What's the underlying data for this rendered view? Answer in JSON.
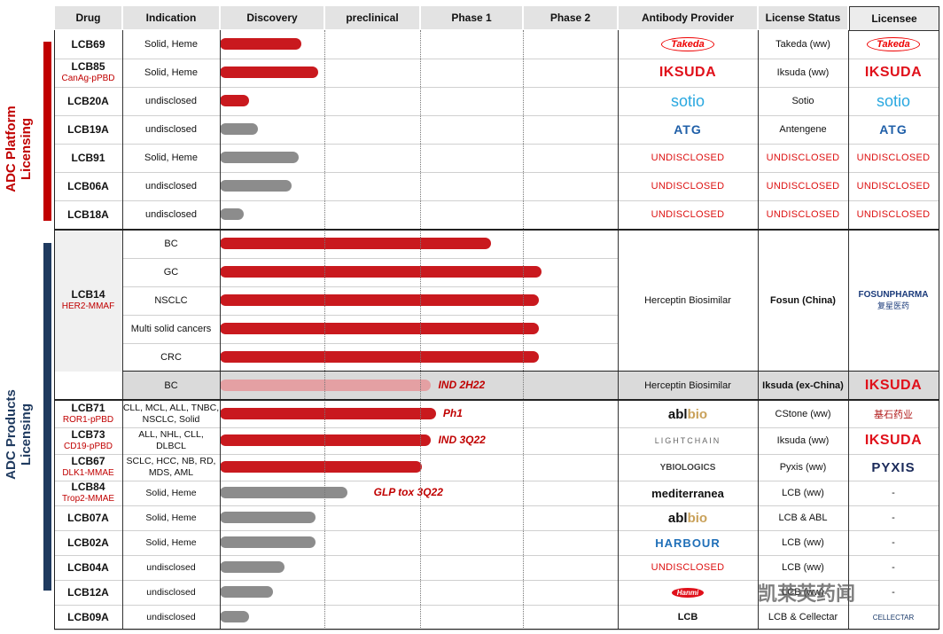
{
  "headers": [
    "Drug",
    "Indication",
    "Discovery",
    "preclinical",
    "Phase 1",
    "Phase 2",
    "Antibody Provider",
    "License Status",
    "Licensee"
  ],
  "sections": {
    "platform": "ADC Platform\nLicensing",
    "products": "ADC Products\nLicensing"
  },
  "colors": {
    "red": "#c9191e",
    "grey": "#8c8c8c",
    "pink": "#e4a0a3",
    "navy": "#1f3a5f",
    "section_red": "#c00000"
  },
  "platform_rows": [
    {
      "drug": "LCB69",
      "sub": "",
      "indication": "Solid, Heme",
      "progress": 0.17,
      "color": "red",
      "provider": "Takeda",
      "provider_style": "takeda",
      "status": "Takeda (ww)",
      "licensee": "Takeda",
      "licensee_style": "takeda"
    },
    {
      "drug": "LCB85",
      "sub": "CanAg-pPBD",
      "indication": "Solid, Heme",
      "progress": 0.205,
      "color": "red",
      "provider": "IKSUDA",
      "provider_style": "iksuda",
      "status": "Iksuda (ww)",
      "licensee": "IKSUDA",
      "licensee_style": "iksuda"
    },
    {
      "drug": "LCB20A",
      "sub": "",
      "indication": "undisclosed",
      "progress": 0.06,
      "color": "red",
      "provider": "Sotio",
      "provider_style": "sotio",
      "status": "Sotio",
      "licensee": "Sotio",
      "licensee_style": "sotio"
    },
    {
      "drug": "LCB19A",
      "sub": "",
      "indication": "undisclosed",
      "progress": 0.08,
      "color": "grey",
      "provider": "ATG",
      "provider_style": "atg",
      "status": "Antengene",
      "licensee": "ATG",
      "licensee_style": "atg"
    },
    {
      "drug": "LCB91",
      "sub": "",
      "indication": "Solid, Heme",
      "progress": 0.165,
      "color": "grey",
      "provider": "UNDISCLOSED",
      "provider_style": "undis",
      "status": "UNDISCLOSED",
      "licensee": "UNDISCLOSED",
      "licensee_style": "undis"
    },
    {
      "drug": "LCB06A",
      "sub": "",
      "indication": "undisclosed",
      "progress": 0.15,
      "color": "grey",
      "provider": "UNDISCLOSED",
      "provider_style": "undis",
      "status": "UNDISCLOSED",
      "licensee": "UNDISCLOSED",
      "licensee_style": "undis"
    },
    {
      "drug": "LCB18A",
      "sub": "",
      "indication": "undisclosed",
      "progress": 0.05,
      "color": "grey",
      "provider": "UNDISCLOSED",
      "provider_style": "undis",
      "status": "UNDISCLOSED",
      "licensee": "UNDISCLOSED",
      "licensee_style": "undis"
    }
  ],
  "lcb14": {
    "drug": "LCB14",
    "sub": "HER2-MMAF",
    "rows": [
      {
        "indication": "BC",
        "progress": 0.565,
        "color": "red"
      },
      {
        "indication": "GC",
        "progress": 0.67,
        "color": "red"
      },
      {
        "indication": "NSCLC",
        "progress": 0.665,
        "color": "red"
      },
      {
        "indication": "Multi solid cancers",
        "progress": 0.665,
        "color": "red"
      },
      {
        "indication": "CRC",
        "progress": 0.665,
        "color": "red"
      }
    ],
    "provider": "Herceptin Biosimilar",
    "status": "Fosun (China)",
    "licensee": "FOSUNPHARMA",
    "licensee_cn": "复星医药",
    "iksuda_row": {
      "indication": "BC",
      "progress": 0.44,
      "color": "pink",
      "note": "IND 2H22",
      "provider": "Herceptin Biosimilar",
      "status": "Iksuda (ex-China)",
      "licensee": "IKSUDA"
    }
  },
  "product_rows": [
    {
      "drug": "LCB71",
      "sub": "ROR1-pPBD",
      "indication": "CLL, MCL, ALL, TNBC, NSCLC, Solid",
      "progress": 0.45,
      "color": "red",
      "note": "Ph1",
      "provider": "abl bio",
      "provider_style": "abl",
      "status": "CStone (ww)",
      "licensee": "基石药业",
      "licensee_style": "cstone"
    },
    {
      "drug": "LCB73",
      "sub": "CD19-pPBD",
      "indication": "ALL, NHL, CLL, DLBCL",
      "progress": 0.44,
      "color": "red",
      "note": "IND 3Q22",
      "provider": "LIGHTCHAIN",
      "provider_style": "lightchain",
      "status": "Iksuda (ww)",
      "licensee": "IKSUDA",
      "licensee_style": "iksuda"
    },
    {
      "drug": "LCB67",
      "sub": "DLK1-MMAE",
      "indication": "SCLC, HCC, NB, RD, MDS, AML",
      "progress": 0.42,
      "color": "red",
      "note": "",
      "provider": "YBIOLOGICS",
      "provider_style": "ybio",
      "status": "Pyxis (ww)",
      "licensee": "PYXIS",
      "licensee_style": "pyxis"
    },
    {
      "drug": "LCB84",
      "sub": "Trop2-MMAE",
      "indication": "Solid, Heme",
      "progress": 0.265,
      "color": "grey",
      "note": "GLP tox  3Q22",
      "provider": "mediterranea",
      "provider_style": "medit",
      "status": "LCB (ww)",
      "licensee": "-",
      "licensee_style": "dash"
    },
    {
      "drug": "LCB07A",
      "sub": "",
      "indication": "Solid, Heme",
      "progress": 0.2,
      "color": "grey",
      "note": "",
      "provider": "abl bio",
      "provider_style": "abl",
      "status": "LCB & ABL",
      "licensee": "-",
      "licensee_style": "dash"
    },
    {
      "drug": "LCB02A",
      "sub": "",
      "indication": "Solid, Heme",
      "progress": 0.2,
      "color": "grey",
      "note": "",
      "provider": "HARBOUR",
      "provider_style": "harbour",
      "status": "LCB (ww)",
      "licensee": "-",
      "licensee_style": "dash"
    },
    {
      "drug": "LCB04A",
      "sub": "",
      "indication": "undisclosed",
      "progress": 0.135,
      "color": "grey",
      "note": "",
      "provider": "UNDISCLOSED",
      "provider_style": "undis",
      "status": "LCB (ww)",
      "licensee": "-",
      "licensee_style": "dash"
    },
    {
      "drug": "LCB12A",
      "sub": "",
      "indication": "undisclosed",
      "progress": 0.11,
      "color": "grey",
      "note": "",
      "provider": "Hanmi",
      "provider_style": "hanmi",
      "status": "LCB (ww)",
      "licensee": "-",
      "licensee_style": "dash"
    },
    {
      "drug": "LCB09A",
      "sub": "",
      "indication": "undisclosed",
      "progress": 0.06,
      "color": "grey",
      "note": "",
      "provider": "LCB",
      "provider_style": "lcb",
      "status": "LCB & Cellectar",
      "licensee": "CELLECTAR",
      "licensee_style": "cellectar"
    }
  ],
  "watermark": "凯莱英药闻"
}
